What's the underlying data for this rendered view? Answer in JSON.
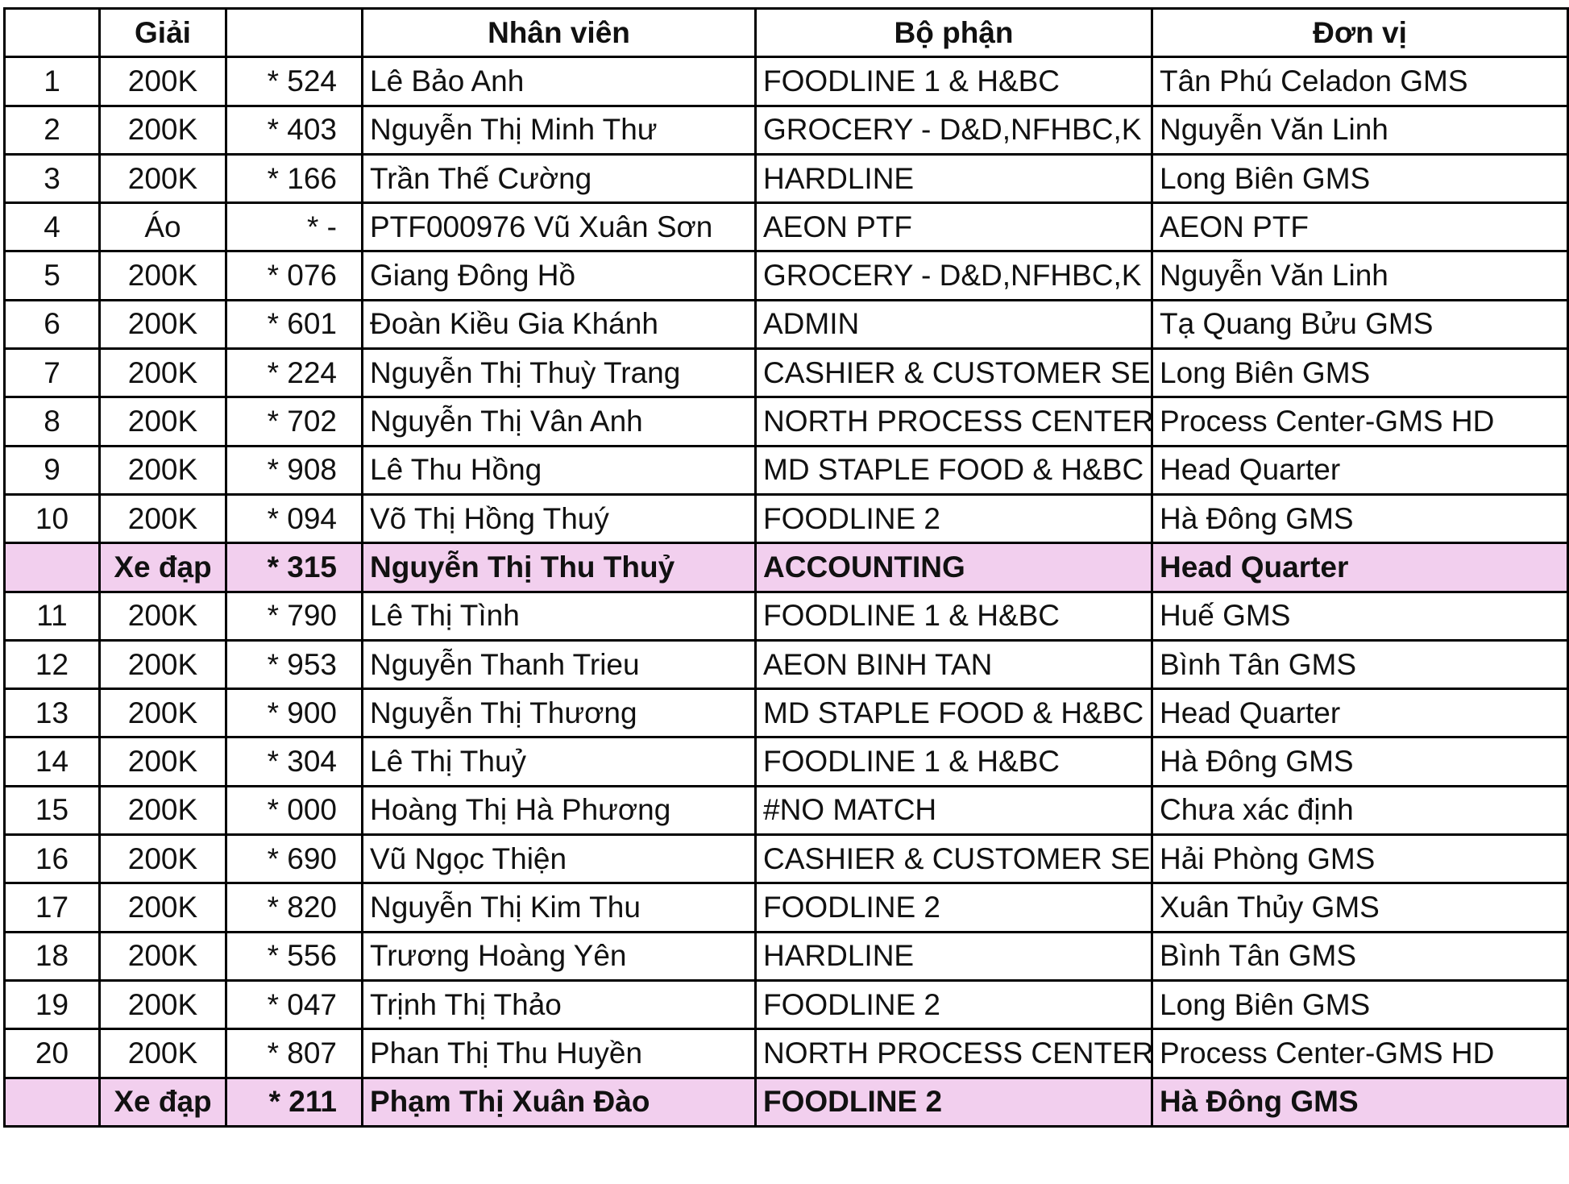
{
  "table": {
    "header": [
      "Giải",
      "Nhân viên",
      "Bộ phận",
      "Đơn vị"
    ],
    "rows": [
      {
        "no": "1",
        "prize": "200K",
        "code": "* 524",
        "name": "Lê Bảo Anh",
        "dept": "FOODLINE 1 & H&BC",
        "unit": "Tân Phú Celadon GMS"
      },
      {
        "no": "2",
        "prize": "200K",
        "code": "* 403",
        "name": "Nguyễn Thị Minh Thư",
        "dept": "GROCERY - D&D,NFHBC,K",
        "unit": "Nguyễn Văn Linh"
      },
      {
        "no": "3",
        "prize": "200K",
        "code": "* 166",
        "name": "Trần Thế Cường",
        "dept": "HARDLINE",
        "unit": "Long Biên GMS"
      },
      {
        "no": "4",
        "prize": "Áo",
        "code": "* -",
        "name": "PTF000976 Vũ Xuân Sơn",
        "dept": "AEON PTF",
        "unit": "AEON PTF"
      },
      {
        "no": "5",
        "prize": "200K",
        "code": "* 076",
        "name": "Giang Đông Hồ",
        "dept": "GROCERY - D&D,NFHBC,K",
        "unit": "Nguyễn Văn Linh"
      },
      {
        "no": "6",
        "prize": "200K",
        "code": "* 601",
        "name": "Đoàn Kiều Gia Khánh",
        "dept": "ADMIN",
        "unit": "Tạ Quang Bửu GMS"
      },
      {
        "no": "7",
        "prize": "200K",
        "code": "* 224",
        "name": "Nguyễn Thị Thuỳ Trang",
        "dept": "CASHIER & CUSTOMER SE",
        "unit": "Long Biên GMS"
      },
      {
        "no": "8",
        "prize": "200K",
        "code": "* 702",
        "name": "Nguyễn Thị Vân Anh",
        "dept": "NORTH PROCESS CENTER",
        "unit": "Process Center-GMS HD"
      },
      {
        "no": "9",
        "prize": "200K",
        "code": "* 908",
        "name": "Lê Thu Hồng",
        "dept": "MD STAPLE FOOD & H&BC",
        "unit": "Head Quarter"
      },
      {
        "no": "10",
        "prize": "200K",
        "code": "* 094",
        "name": "Võ Thị Hồng Thuý",
        "dept": "FOODLINE 2",
        "unit": "Hà Đông GMS"
      },
      {
        "prize": "Xe đạp",
        "code": "* 315",
        "name": "Nguyễn Thị Thu Thuỷ",
        "dept": "ACCOUNTING",
        "unit": "Head Quarter",
        "highlight": true
      },
      {
        "no": "11",
        "prize": "200K",
        "code": "* 790",
        "name": "Lê Thị Tình",
        "dept": "FOODLINE 1 & H&BC",
        "unit": "Huế GMS"
      },
      {
        "no": "12",
        "prize": "200K",
        "code": "* 953",
        "name": "Nguyễn Thanh Trieu",
        "dept": "AEON BINH TAN",
        "unit": "Bình Tân GMS"
      },
      {
        "no": "13",
        "prize": "200K",
        "code": "* 900",
        "name": "Nguyễn Thị Thương",
        "dept": "MD STAPLE FOOD & H&BC",
        "unit": "Head Quarter"
      },
      {
        "no": "14",
        "prize": "200K",
        "code": "* 304",
        "name": "Lê Thị Thuỷ",
        "dept": "FOODLINE 1 & H&BC",
        "unit": "Hà Đông GMS"
      },
      {
        "no": "15",
        "prize": "200K",
        "code": "* 000",
        "name": "Hoàng Thị Hà Phương",
        "dept": "#NO MATCH",
        "unit": "Chưa xác định"
      },
      {
        "no": "16",
        "prize": "200K",
        "code": "* 690",
        "name": "Vũ Ngọc Thiện",
        "dept": "CASHIER & CUSTOMER SE",
        "unit": "Hải Phòng GMS"
      },
      {
        "no": "17",
        "prize": "200K",
        "code": "* 820",
        "name": "Nguyễn Thị Kim Thu",
        "dept": "FOODLINE 2",
        "unit": "Xuân Thủy GMS"
      },
      {
        "no": "18",
        "prize": "200K",
        "code": "* 556",
        "name": "Trương Hoàng Yên",
        "dept": "HARDLINE",
        "unit": "Bình Tân GMS"
      },
      {
        "no": "19",
        "prize": "200K",
        "code": "* 047",
        "name": "Trịnh Thị Thảo",
        "dept": "FOODLINE 2",
        "unit": "Long Biên GMS"
      },
      {
        "no": "20",
        "prize": "200K",
        "code": "* 807",
        "name": "Phan Thị Thu Huyền",
        "dept": "NORTH PROCESS CENTER",
        "unit": "Process Center-GMS HD"
      },
      {
        "prize": "Xe đạp",
        "code": "* 211",
        "name": "Phạm Thị Xuân Đào",
        "dept": "FOODLINE 2",
        "unit": "Hà Đông GMS",
        "highlight": true
      }
    ]
  }
}
